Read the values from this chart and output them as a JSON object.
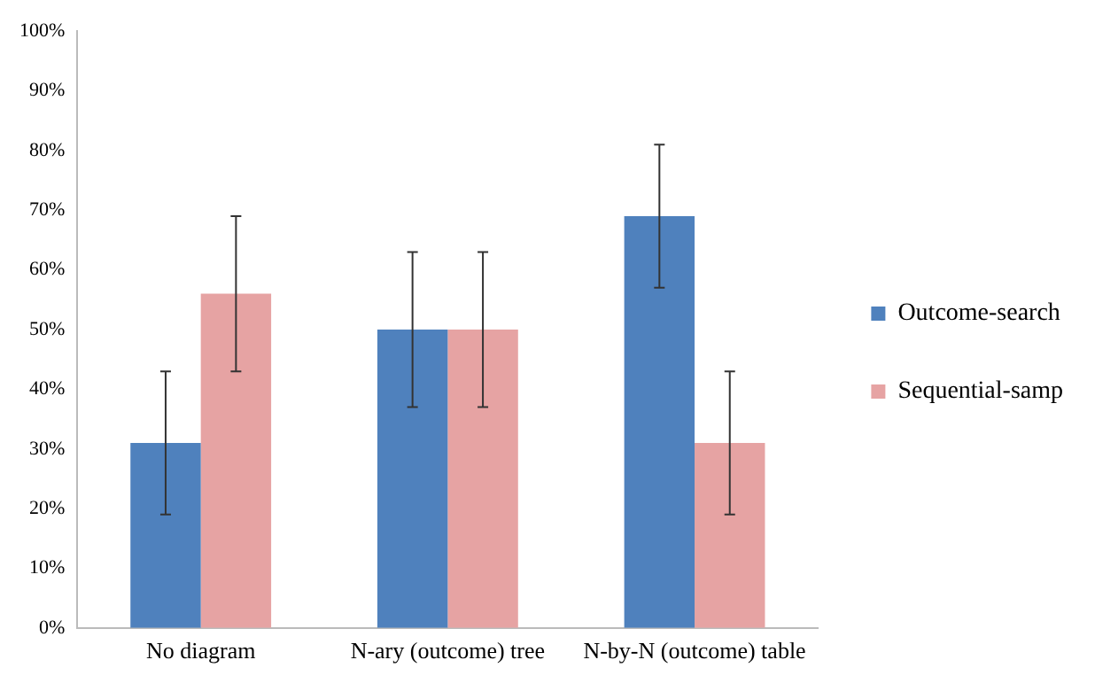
{
  "chart_data": {
    "type": "bar",
    "categories": [
      "No diagram",
      "N-ary (outcome) tree",
      "N-by-N (outcome) table"
    ],
    "series": [
      {
        "name": "Outcome-search",
        "color": "#4f81bd",
        "values": [
          31,
          50,
          69
        ],
        "errors": [
          12,
          13,
          12
        ]
      },
      {
        "name": "Sequential-samp",
        "color": "#e6a3a3",
        "values": [
          56,
          50,
          31
        ],
        "errors": [
          13,
          13,
          12
        ]
      }
    ],
    "ylim": [
      0,
      100
    ],
    "yticks": [
      {
        "value": 0,
        "label": "0%"
      },
      {
        "value": 10,
        "label": "10%"
      },
      {
        "value": 20,
        "label": "20%"
      },
      {
        "value": 30,
        "label": "30%"
      },
      {
        "value": 40,
        "label": "40%"
      },
      {
        "value": 50,
        "label": "50%"
      },
      {
        "value": 60,
        "label": "60%"
      },
      {
        "value": 70,
        "label": "70%"
      },
      {
        "value": 80,
        "label": "80%"
      },
      {
        "value": 90,
        "label": "90%"
      },
      {
        "value": 100,
        "label": "100%"
      }
    ],
    "grid": false,
    "legend": "right"
  }
}
